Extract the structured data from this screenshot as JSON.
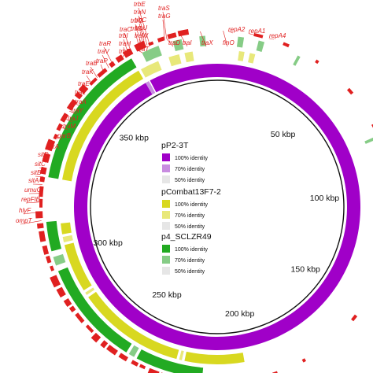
{
  "colors": {
    "background": "#ffffff",
    "backbone": "#111111",
    "annotation_red": "#e02020",
    "pP2_3T": [
      "#a000c8",
      "#c88ce0",
      "#e6e6e6"
    ],
    "pCombat13F7_2": [
      "#d8d820",
      "#e8e87a",
      "#e6e6e6"
    ],
    "p4_SCLZR49": [
      "#22aa22",
      "#86cc86",
      "#e6e6e6"
    ]
  },
  "ticks": [
    "50 kbp",
    "100 kbp",
    "150 kbp",
    "200 kbp",
    "250 kbp",
    "300 kbp",
    "350 kbp"
  ],
  "legend": [
    {
      "name": "pP2-3T",
      "items": [
        "100% identity",
        "70% identity",
        "50% identity"
      ]
    },
    {
      "name": "pCombat13F7-2",
      "items": [
        "100% identity",
        "70% identity",
        "50% identity"
      ]
    },
    {
      "name": "p4_SCLZR49",
      "items": [
        "100% identity",
        "70% identity",
        "50% identity"
      ]
    }
  ],
  "gene_labels": [
    "traS",
    "traG",
    "trbE",
    "traN",
    "trbC",
    "traU",
    "traW",
    "trbG",
    "trbD",
    "traC",
    "trbI",
    "traH",
    "trbB",
    "traT",
    "traD",
    "traI",
    "traX",
    "finO",
    "repA2",
    "repA1",
    "repA4",
    "traR",
    "traV",
    "traP",
    "traB",
    "traK",
    "traE",
    "traL",
    "traA",
    "traY",
    "traJ",
    "traM",
    "parB",
    "parA",
    "sitD",
    "sitC",
    "sitB",
    "sitA",
    "umuC",
    "repFIB",
    "hlyF",
    "ompT"
  ]
}
